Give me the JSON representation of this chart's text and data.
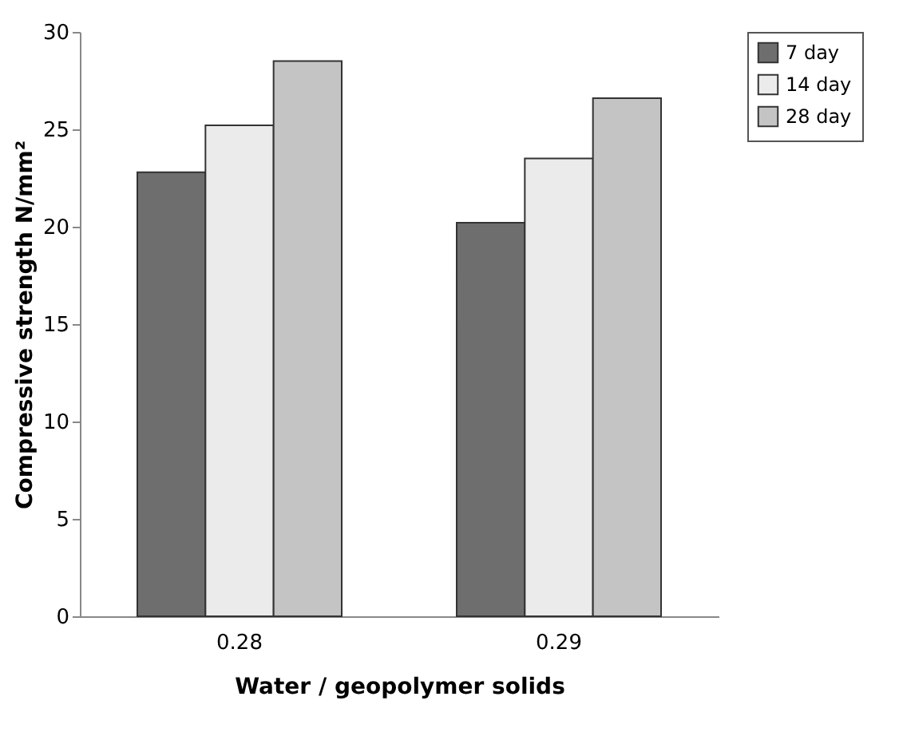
{
  "chart_data": {
    "type": "bar",
    "xlabel": "Water / geopolymer solids",
    "ylabel": "Compressive strength N/mm²",
    "categories": [
      "0.28",
      "0.29"
    ],
    "series": [
      {
        "name": "7 day",
        "color": "#6e6e6e",
        "values": [
          22.8,
          20.2
        ]
      },
      {
        "name": "14 day",
        "color": "#ebebeb",
        "values": [
          25.2,
          23.5
        ]
      },
      {
        "name": "28 day",
        "color": "#c4c4c4",
        "values": [
          28.5,
          26.6
        ]
      }
    ],
    "ylim": [
      0,
      30
    ],
    "yticks": [
      0,
      5,
      10,
      15,
      20,
      25,
      30
    ],
    "grid": false,
    "legend": "right"
  }
}
